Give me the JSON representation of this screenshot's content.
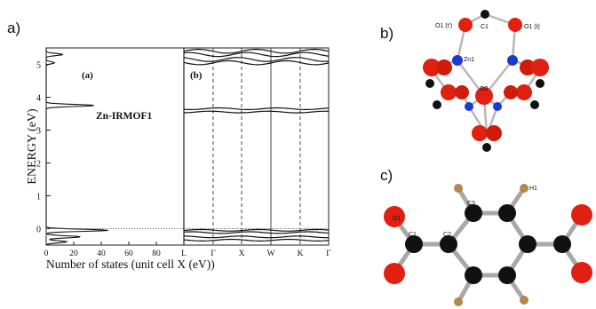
{
  "labels": {
    "a": "a)",
    "b": "b)",
    "c": "c)"
  },
  "chart_data": {
    "type": "line",
    "ylabel": "ENERGY (eV)",
    "xlabel": "Number of states (unit cell X (eV))",
    "ylim": [
      -0.5,
      5.5
    ],
    "yticks": [
      "0",
      "1",
      "2",
      "3",
      "4",
      "5"
    ],
    "left_panel": {
      "tag": "(a)",
      "annotation": "Zn-IRMOF1",
      "xlim": [
        0,
        100
      ],
      "xticks": [
        "0",
        "20",
        "40",
        "60",
        "80"
      ],
      "dos_peaks": [
        {
          "energy": 3.75,
          "states": 35
        },
        {
          "energy": 5.3,
          "states": 12
        },
        {
          "energy": 5.05,
          "states": 6
        },
        {
          "energy": -0.05,
          "states": 45
        },
        {
          "energy": -0.25,
          "states": 25
        },
        {
          "energy": -0.4,
          "states": 15
        }
      ]
    },
    "right_panel": {
      "tag": "(b)",
      "kpoints": [
        "L",
        "Γ",
        "X",
        "W",
        "K",
        "Γ"
      ],
      "band_energies": [
        5.4,
        5.3,
        5.15,
        5.05,
        3.65,
        3.55,
        -0.05,
        -0.12,
        -0.25,
        -0.35
      ]
    }
  },
  "structure_b": {
    "atom_labels": [
      "O1 (t')",
      "C1",
      "O1 (t)",
      "Zn1",
      "O2"
    ]
  },
  "structure_c": {
    "atom_labels": [
      "O1",
      "C1",
      "C2",
      "C3",
      "H1"
    ]
  }
}
